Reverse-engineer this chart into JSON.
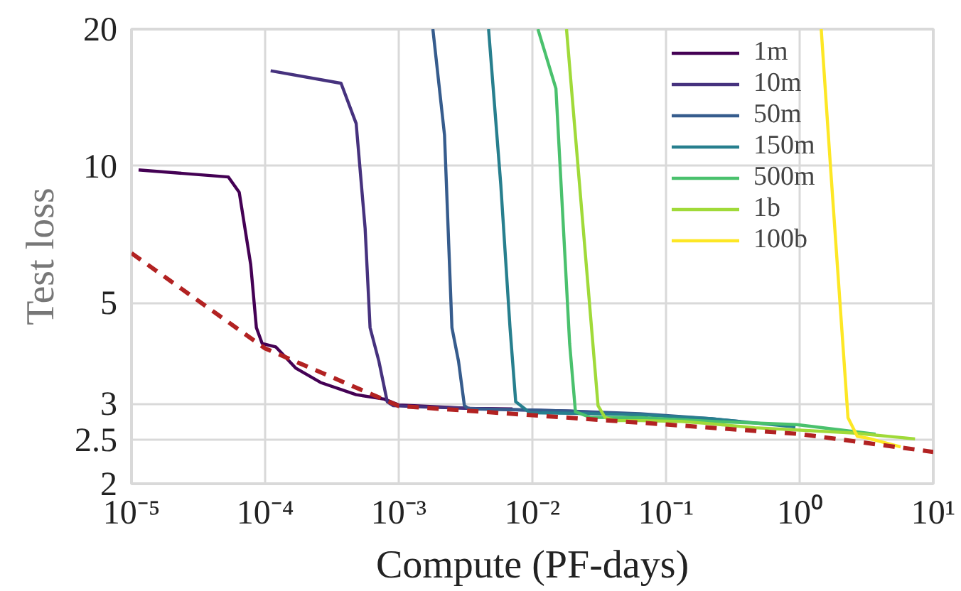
{
  "chart_data": {
    "type": "line",
    "xlabel": "Compute (PF-days)",
    "ylabel": "Test loss",
    "log": "xy",
    "grid": true,
    "legend": "top right",
    "xlim": [
      1e-05,
      10
    ],
    "ylim": [
      2,
      20
    ],
    "xticks": [
      {
        "value": 1e-05,
        "label": "10⁻⁵"
      },
      {
        "value": 0.0001,
        "label": "10⁻⁴"
      },
      {
        "value": 0.001,
        "label": "10⁻³"
      },
      {
        "value": 0.01,
        "label": "10⁻²"
      },
      {
        "value": 0.1,
        "label": "10⁻¹"
      },
      {
        "value": 1,
        "label": "10⁰"
      },
      {
        "value": 10,
        "label": "10¹"
      }
    ],
    "yticks": [
      2,
      2.5,
      3,
      5,
      10,
      20
    ],
    "series": [
      {
        "name": "1m",
        "color": "#440154",
        "x": [
          1.13e-05,
          5.3e-05,
          6.4e-05,
          7.8e-05,
          8.6e-05,
          9.5e-05,
          0.00012,
          0.00017,
          0.00026,
          0.00048,
          0.00078,
          0.001,
          0.0016,
          0.0034,
          0.0071
        ],
        "values": [
          9.8,
          9.46,
          8.75,
          6.07,
          4.41,
          4.07,
          4.0,
          3.59,
          3.34,
          3.14,
          3.07,
          2.98,
          2.96,
          2.93,
          2.92
        ]
      },
      {
        "name": "10m",
        "color": "#46327e",
        "x": [
          0.00011,
          0.00037,
          0.00048,
          0.00056,
          0.00061,
          0.00071,
          0.00082,
          0.00091,
          0.0016,
          0.0034,
          0.0071,
          0.019,
          0.039,
          0.073
        ],
        "values": [
          16.2,
          15.2,
          12.4,
          7.3,
          4.41,
          3.72,
          3.03,
          2.97,
          2.95,
          2.93,
          2.91,
          2.89,
          2.86,
          2.82
        ]
      },
      {
        "name": "50m",
        "color": "#365c8d",
        "x": [
          0.0018,
          0.0022,
          0.0025,
          0.0028,
          0.0031,
          0.0033,
          0.0038,
          0.0071,
          0.019,
          0.064,
          0.22,
          0.36
        ],
        "values": [
          20,
          11.7,
          4.41,
          3.72,
          2.97,
          2.93,
          2.92,
          2.91,
          2.89,
          2.85,
          2.78,
          2.74
        ]
      },
      {
        "name": "150m",
        "color": "#277f8e",
        "x": [
          0.0047,
          0.0058,
          0.0068,
          0.0075,
          0.0091,
          0.0095,
          0.019,
          0.064,
          0.22,
          0.93
        ],
        "values": [
          20,
          9.1,
          4.41,
          3.03,
          2.9,
          2.865,
          2.858,
          2.837,
          2.78,
          2.667
        ]
      },
      {
        "name": "500m",
        "color": "#4ac16d",
        "x": [
          0.011,
          0.015,
          0.019,
          0.021,
          0.027,
          0.064,
          0.22,
          0.95,
          3.7
        ],
        "values": [
          20,
          14.8,
          4.07,
          2.88,
          2.8,
          2.795,
          2.743,
          2.698,
          2.57
        ]
      },
      {
        "name": "1b",
        "color": "#a0da39",
        "x": [
          0.018,
          0.024,
          0.031,
          0.035,
          0.042,
          0.064,
          0.13,
          0.22,
          0.46,
          2.5,
          7.3
        ],
        "values": [
          20,
          7.3,
          2.97,
          2.795,
          2.754,
          2.754,
          2.743,
          2.709,
          2.656,
          2.587,
          2.51
        ]
      },
      {
        "name": "100b",
        "color": "#fde725",
        "x": [
          1.45,
          1.7,
          2.3,
          2.7,
          3.2,
          5.7
        ],
        "values": [
          20,
          10,
          2.795,
          2.542,
          2.521,
          2.41
        ]
      },
      {
        "color": "#b22222",
        "line_style": "dashed",
        "x": [
          1e-05,
          0.0001,
          0.001,
          0.01,
          0.1,
          1,
          10
        ],
        "values": [
          6.43,
          3.97,
          2.965,
          2.83,
          2.7,
          2.573,
          2.35
        ]
      }
    ]
  }
}
